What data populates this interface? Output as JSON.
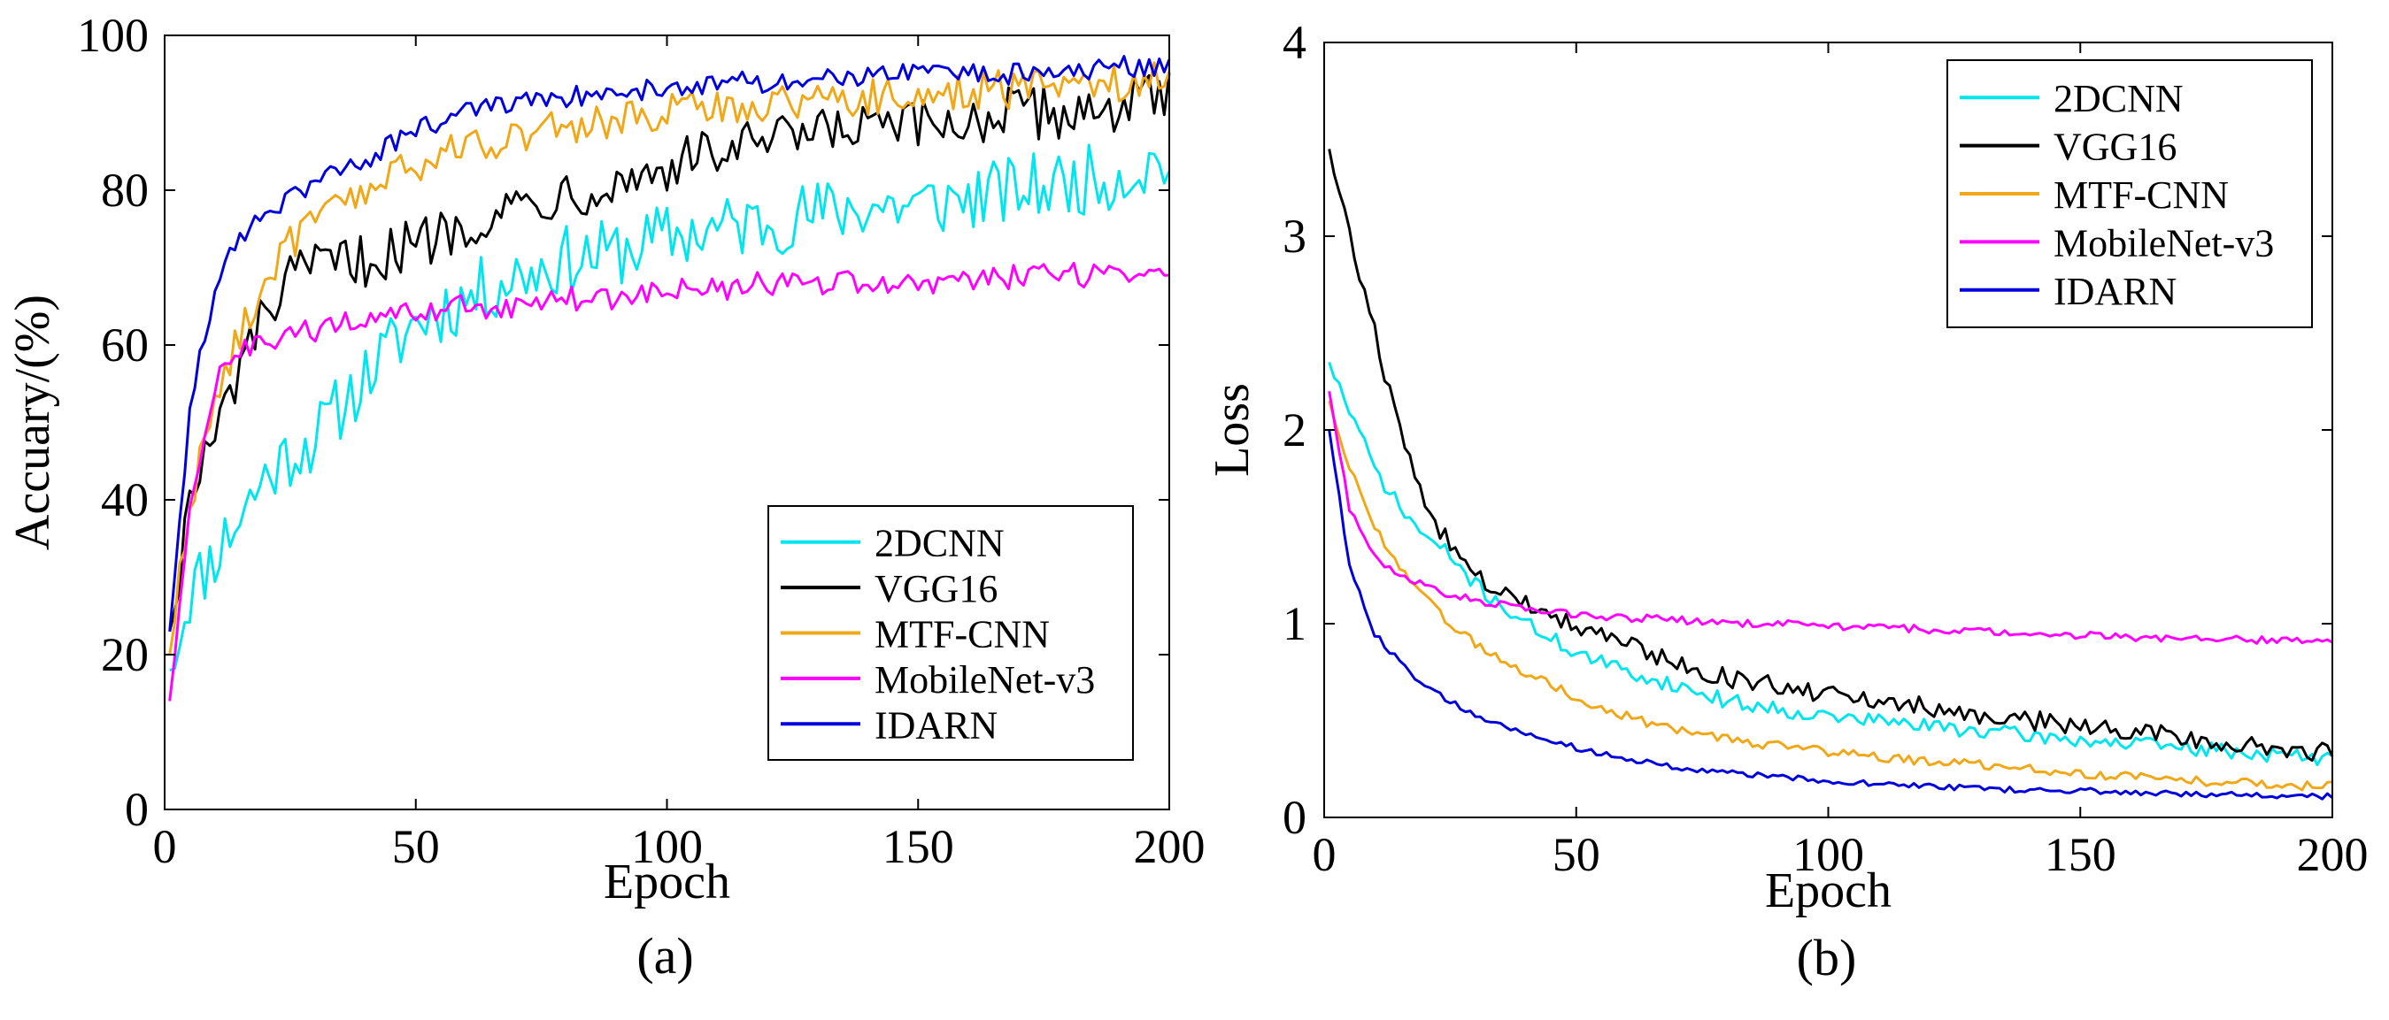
{
  "chart_data": [
    {
      "type": "line",
      "panel_label": "(a)",
      "title": "",
      "xlabel": "Epoch",
      "ylabel": "Accuary/(%)",
      "xlim": [
        0,
        200
      ],
      "ylim": [
        0,
        100
      ],
      "xticks": [
        0,
        50,
        100,
        150,
        200
      ],
      "yticks": [
        0,
        20,
        40,
        60,
        80,
        100
      ],
      "grid": false,
      "legend_position": "bottom-right",
      "x": [
        1,
        5,
        10,
        15,
        20,
        25,
        30,
        40,
        50,
        60,
        70,
        80,
        90,
        100,
        110,
        120,
        130,
        140,
        150,
        160,
        170,
        180,
        190,
        200
      ],
      "series": [
        {
          "name": "2DCNN",
          "color": "#00e5ee",
          "noise": 4.5,
          "values": [
            18,
            28,
            33,
            38,
            43,
            46,
            48,
            56,
            63,
            66,
            69,
            71,
            72,
            74,
            75,
            76,
            77,
            78,
            78,
            79,
            80,
            81,
            82,
            84
          ]
        },
        {
          "name": "VGG16",
          "color": "#000000",
          "noise": 3.5,
          "values": [
            23,
            40,
            48,
            57,
            64,
            68,
            70,
            71,
            73,
            76,
            78,
            80,
            81,
            83,
            85,
            86,
            87,
            88,
            88,
            89,
            90,
            90,
            91,
            92
          ]
        },
        {
          "name": "MTF-CNN",
          "color": "#f0a818",
          "noise": 2.5,
          "values": [
            20,
            40,
            52,
            62,
            68,
            73,
            76,
            80,
            83,
            86,
            87,
            88,
            89,
            90,
            91,
            91,
            92,
            92,
            92,
            93,
            93,
            94,
            94,
            95
          ]
        },
        {
          "name": "MobileNet-v3",
          "color": "#ff00ff",
          "noise": 1.6,
          "values": [
            14,
            38,
            55,
            59,
            60,
            61,
            62,
            63,
            64,
            65,
            65,
            66,
            66,
            67,
            67,
            68,
            68,
            68,
            68,
            68,
            69,
            69,
            69,
            70
          ]
        },
        {
          "name": "IDARN",
          "color": "#0000dd",
          "noise": 1.4,
          "values": [
            23,
            52,
            67,
            74,
            77,
            79,
            81,
            84,
            88,
            90,
            91,
            92,
            93,
            93,
            94,
            94,
            94,
            95,
            95,
            95,
            95,
            95,
            96,
            96
          ]
        }
      ]
    },
    {
      "type": "line",
      "panel_label": "(b)",
      "title": "",
      "xlabel": "Epoch",
      "ylabel": "Loss",
      "xlim": [
        0,
        200
      ],
      "ylim": [
        0,
        4
      ],
      "xticks": [
        0,
        50,
        100,
        150,
        200
      ],
      "yticks": [
        0,
        1,
        2,
        3,
        4
      ],
      "grid": false,
      "legend_position": "top-right",
      "x": [
        1,
        5,
        10,
        15,
        20,
        25,
        30,
        40,
        50,
        60,
        70,
        80,
        90,
        100,
        110,
        120,
        130,
        140,
        150,
        160,
        170,
        180,
        190,
        200
      ],
      "series": [
        {
          "name": "2DCNN",
          "color": "#00e5ee",
          "noise": 0.04,
          "values": [
            2.35,
            2.1,
            1.8,
            1.6,
            1.45,
            1.35,
            1.2,
            1.0,
            0.85,
            0.75,
            0.68,
            0.6,
            0.56,
            0.52,
            0.5,
            0.47,
            0.45,
            0.42,
            0.4,
            0.38,
            0.36,
            0.34,
            0.32,
            0.3
          ]
        },
        {
          "name": "VGG16",
          "color": "#000000",
          "noise": 0.05,
          "values": [
            3.45,
            3.0,
            2.5,
            2.0,
            1.6,
            1.4,
            1.25,
            1.1,
            1.0,
            0.9,
            0.8,
            0.72,
            0.68,
            0.63,
            0.6,
            0.57,
            0.53,
            0.5,
            0.48,
            0.45,
            0.42,
            0.38,
            0.36,
            0.33
          ]
        },
        {
          "name": "MTF-CNN",
          "color": "#f0a818",
          "noise": 0.025,
          "values": [
            2.15,
            1.8,
            1.5,
            1.3,
            1.15,
            1.0,
            0.9,
            0.75,
            0.62,
            0.52,
            0.45,
            0.4,
            0.37,
            0.34,
            0.31,
            0.29,
            0.27,
            0.25,
            0.23,
            0.21,
            0.19,
            0.18,
            0.17,
            0.16
          ]
        },
        {
          "name": "MobileNet-v3",
          "color": "#ff00ff",
          "noise": 0.02,
          "values": [
            2.2,
            1.6,
            1.35,
            1.25,
            1.2,
            1.15,
            1.12,
            1.08,
            1.05,
            1.03,
            1.02,
            1.0,
            1.0,
            0.99,
            0.98,
            0.97,
            0.96,
            0.95,
            0.94,
            0.93,
            0.92,
            0.92,
            0.91,
            0.9
          ]
        },
        {
          "name": "IDARN",
          "color": "#0000dd",
          "noise": 0.015,
          "values": [
            2.0,
            1.3,
            0.95,
            0.8,
            0.68,
            0.6,
            0.53,
            0.43,
            0.36,
            0.3,
            0.26,
            0.23,
            0.21,
            0.19,
            0.17,
            0.16,
            0.15,
            0.14,
            0.14,
            0.13,
            0.12,
            0.12,
            0.11,
            0.11
          ]
        }
      ]
    }
  ]
}
